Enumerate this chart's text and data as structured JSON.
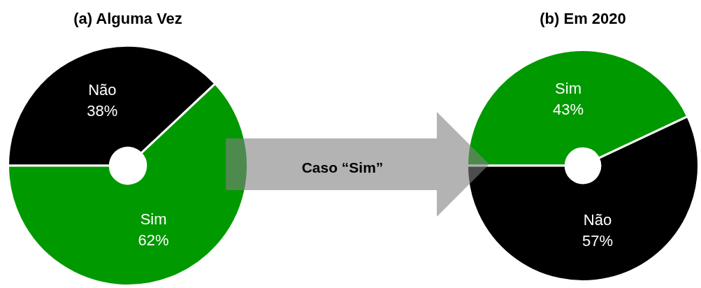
{
  "chart_data": [
    {
      "type": "donut",
      "title": "(a) Alguma Vez",
      "categories": [
        "Não",
        "Sim"
      ],
      "values": [
        38,
        62
      ],
      "colors": [
        "#000000",
        "#009900"
      ],
      "value_labels": [
        "38%",
        "62%"
      ],
      "annotations": [
        "Caso “Sim”"
      ]
    },
    {
      "type": "donut",
      "title": "(b) Em 2020",
      "categories": [
        "Sim",
        "Não"
      ],
      "values": [
        43,
        57
      ],
      "colors": [
        "#009900",
        "#000000"
      ],
      "value_labels": [
        "43%",
        "57%"
      ]
    }
  ]
}
